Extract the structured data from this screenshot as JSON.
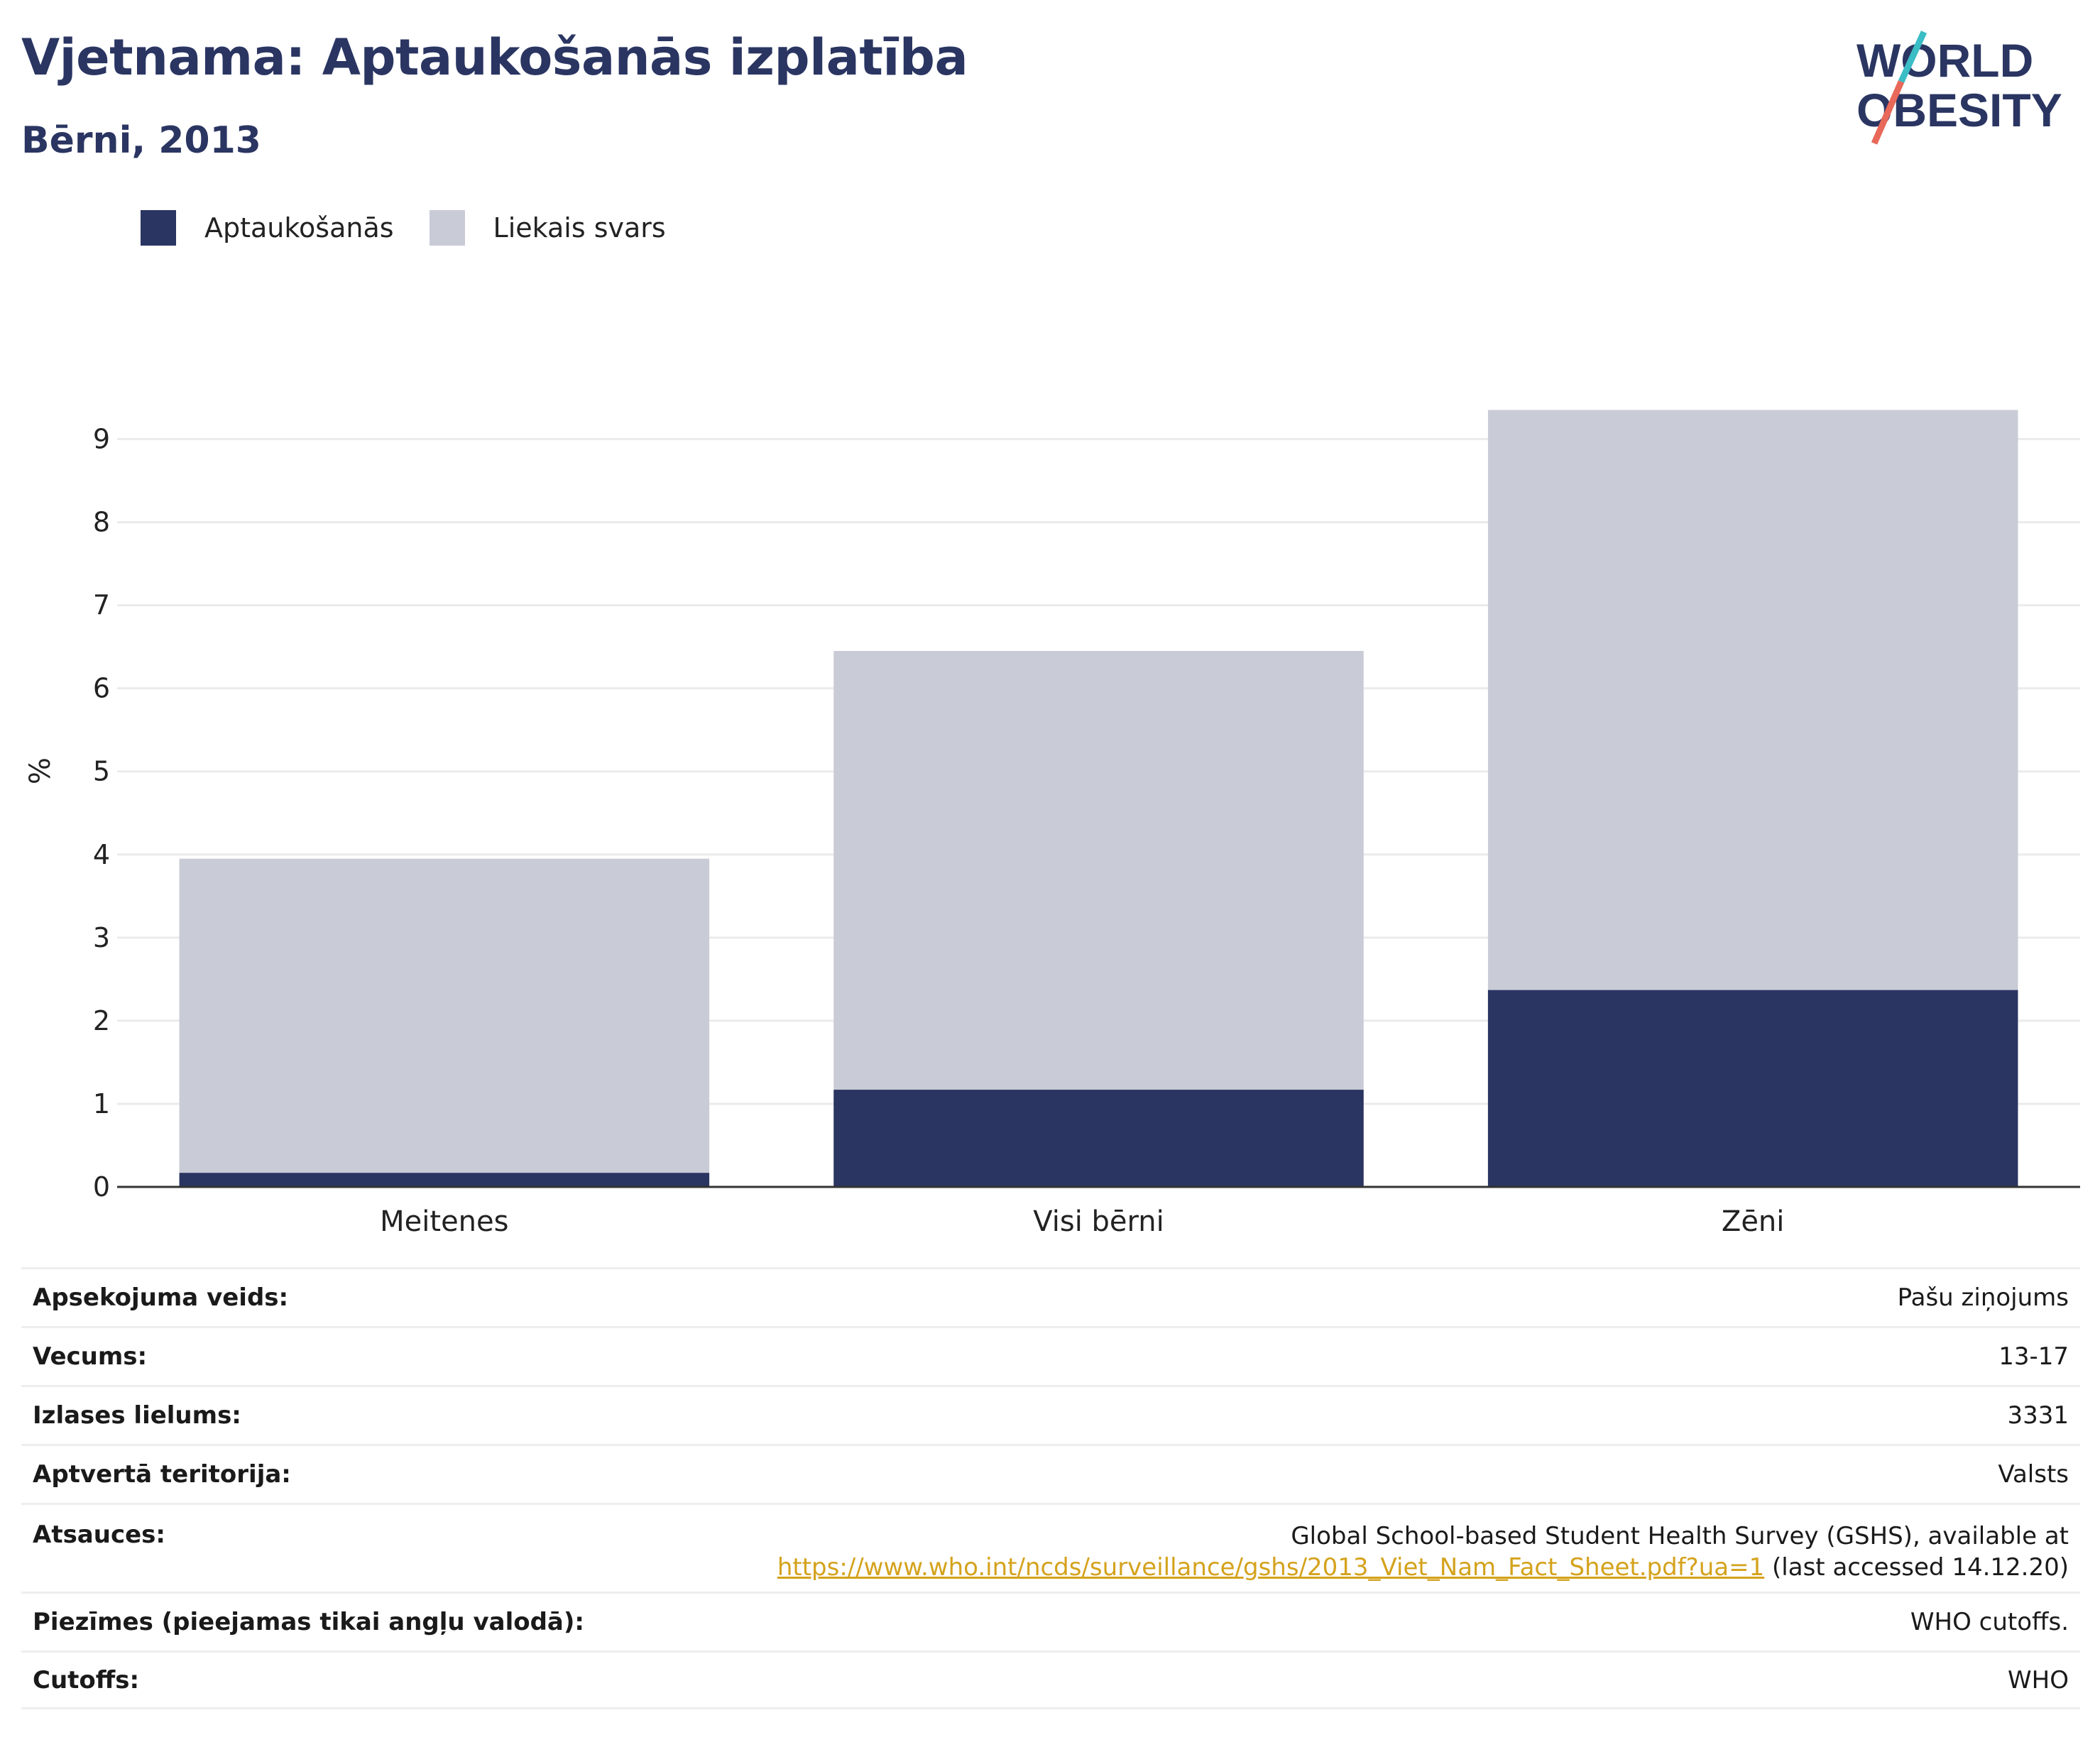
{
  "header": {
    "title": "Vjetnama: Aptaukošanās izplatība",
    "subtitle": "Bērni, 2013"
  },
  "logo": {
    "line1": "WORLD",
    "line2": "OBESITY"
  },
  "legend": [
    {
      "label": "Aptaukošanās",
      "color": "#2a3562"
    },
    {
      "label": "Liekais svars",
      "color": "#c9cbd6"
    }
  ],
  "chart_data": {
    "type": "bar",
    "stacked": true,
    "categories": [
      "Meitenes",
      "Visi bērni",
      "Zēni"
    ],
    "series": [
      {
        "name": "Aptaukošanās",
        "values": [
          0.17,
          1.17,
          2.37
        ],
        "color": "#2a3562"
      },
      {
        "name": "Liekais svars",
        "values": [
          3.78,
          5.28,
          6.98
        ],
        "color": "#c9cbd6"
      }
    ],
    "ylabel": "%",
    "ylim": [
      0,
      9.5
    ],
    "yticks": [
      0,
      1,
      2,
      3,
      4,
      5,
      6,
      7,
      8,
      9
    ],
    "grid": true,
    "legend_position": "top-left"
  },
  "info": {
    "survey_type_label": "Apsekojuma veids:",
    "survey_type_value": "Pašu ziņojums",
    "age_label": "Vecums:",
    "age_value": "13-17",
    "sample_label": "Izlases lielums:",
    "sample_value": "3331",
    "area_label": "Aptvertā teritorija:",
    "area_value": "Valsts",
    "refs_label": "Atsauces:",
    "refs_line1": "Global School-based Student Health Survey (GSHS), available at",
    "refs_link": "https://www.who.int/ncds/surveillance/gshs/2013_Viet_Nam_Fact_Sheet.pdf?ua=1",
    "refs_suffix": " (last accessed 14.12.20)",
    "notes_label": "Piezīmes (pieejamas tikai angļu valodā):",
    "notes_value": "WHO cutoffs.",
    "cutoffs_label": "Cutoffs:",
    "cutoffs_value": "WHO"
  }
}
